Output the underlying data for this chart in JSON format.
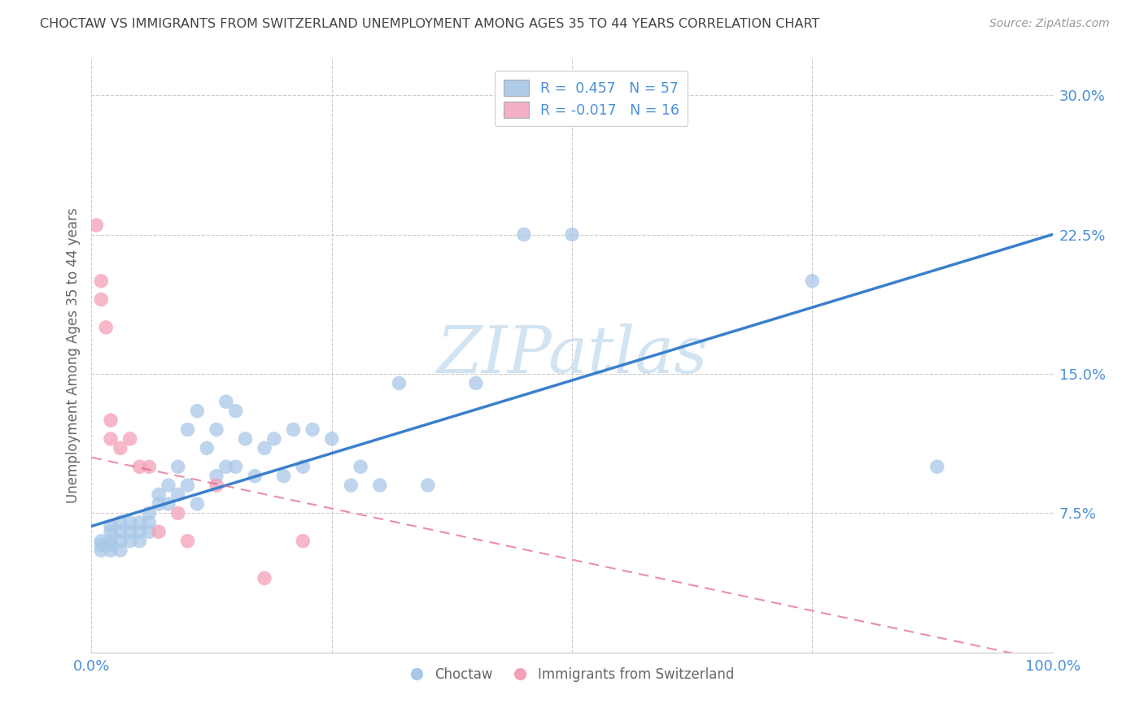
{
  "title": "CHOCTAW VS IMMIGRANTS FROM SWITZERLAND UNEMPLOYMENT AMONG AGES 35 TO 44 YEARS CORRELATION CHART",
  "source": "Source: ZipAtlas.com",
  "ylabel": "Unemployment Among Ages 35 to 44 years",
  "xlim": [
    0,
    1.0
  ],
  "ylim": [
    0,
    0.32
  ],
  "xticks": [
    0.0,
    0.25,
    0.5,
    0.75,
    1.0
  ],
  "xticklabels": [
    "0.0%",
    "",
    "",
    "",
    "100.0%"
  ],
  "yticks": [
    0.0,
    0.075,
    0.15,
    0.225,
    0.3
  ],
  "yticklabels": [
    "",
    "7.5%",
    "15.0%",
    "22.5%",
    "30.0%"
  ],
  "choctaw_R": 0.457,
  "choctaw_N": 57,
  "swiss_R": -0.017,
  "swiss_N": 16,
  "choctaw_color": "#a8c8e8",
  "swiss_color": "#f4a0b8",
  "choctaw_line_color": "#3a80cc",
  "swiss_line_color": "#e06080",
  "watermark": "ZIPatlas",
  "watermark_color": "#c0d8ec",
  "choctaw_x": [
    0.01,
    0.01,
    0.01,
    0.02,
    0.02,
    0.02,
    0.02,
    0.02,
    0.03,
    0.03,
    0.03,
    0.03,
    0.04,
    0.04,
    0.04,
    0.05,
    0.05,
    0.05,
    0.06,
    0.06,
    0.06,
    0.07,
    0.07,
    0.08,
    0.08,
    0.09,
    0.09,
    0.1,
    0.1,
    0.11,
    0.11,
    0.12,
    0.13,
    0.13,
    0.14,
    0.14,
    0.15,
    0.15,
    0.16,
    0.17,
    0.18,
    0.19,
    0.2,
    0.21,
    0.22,
    0.23,
    0.25,
    0.27,
    0.28,
    0.3,
    0.32,
    0.35,
    0.4,
    0.45,
    0.5,
    0.75,
    0.88
  ],
  "choctaw_y": [
    0.055,
    0.058,
    0.06,
    0.055,
    0.058,
    0.06,
    0.065,
    0.068,
    0.055,
    0.06,
    0.065,
    0.07,
    0.06,
    0.065,
    0.07,
    0.06,
    0.065,
    0.07,
    0.065,
    0.07,
    0.075,
    0.08,
    0.085,
    0.08,
    0.09,
    0.085,
    0.1,
    0.09,
    0.12,
    0.08,
    0.13,
    0.11,
    0.095,
    0.12,
    0.1,
    0.135,
    0.1,
    0.13,
    0.115,
    0.095,
    0.11,
    0.115,
    0.095,
    0.12,
    0.1,
    0.12,
    0.115,
    0.09,
    0.1,
    0.09,
    0.145,
    0.09,
    0.145,
    0.225,
    0.225,
    0.2,
    0.1
  ],
  "swiss_x": [
    0.005,
    0.01,
    0.01,
    0.015,
    0.02,
    0.02,
    0.03,
    0.04,
    0.05,
    0.06,
    0.07,
    0.09,
    0.1,
    0.13,
    0.18,
    0.22
  ],
  "swiss_y": [
    0.23,
    0.19,
    0.2,
    0.175,
    0.115,
    0.125,
    0.11,
    0.115,
    0.1,
    0.1,
    0.065,
    0.075,
    0.06,
    0.09,
    0.04,
    0.06
  ],
  "choctaw_line_x0": 0.0,
  "choctaw_line_y0": 0.068,
  "choctaw_line_x1": 1.0,
  "choctaw_line_y1": 0.225,
  "swiss_line_x0": 0.0,
  "swiss_line_y0": 0.105,
  "swiss_line_x1": 1.0,
  "swiss_line_y1": -0.005,
  "grid_color": "#cccccc",
  "bg_color": "#ffffff",
  "title_color": "#444444",
  "axis_label_color": "#666666",
  "tick_label_color": "#4a90d9",
  "legend_patch_blue": "#b0cce8",
  "legend_patch_pink": "#f4b0c8"
}
